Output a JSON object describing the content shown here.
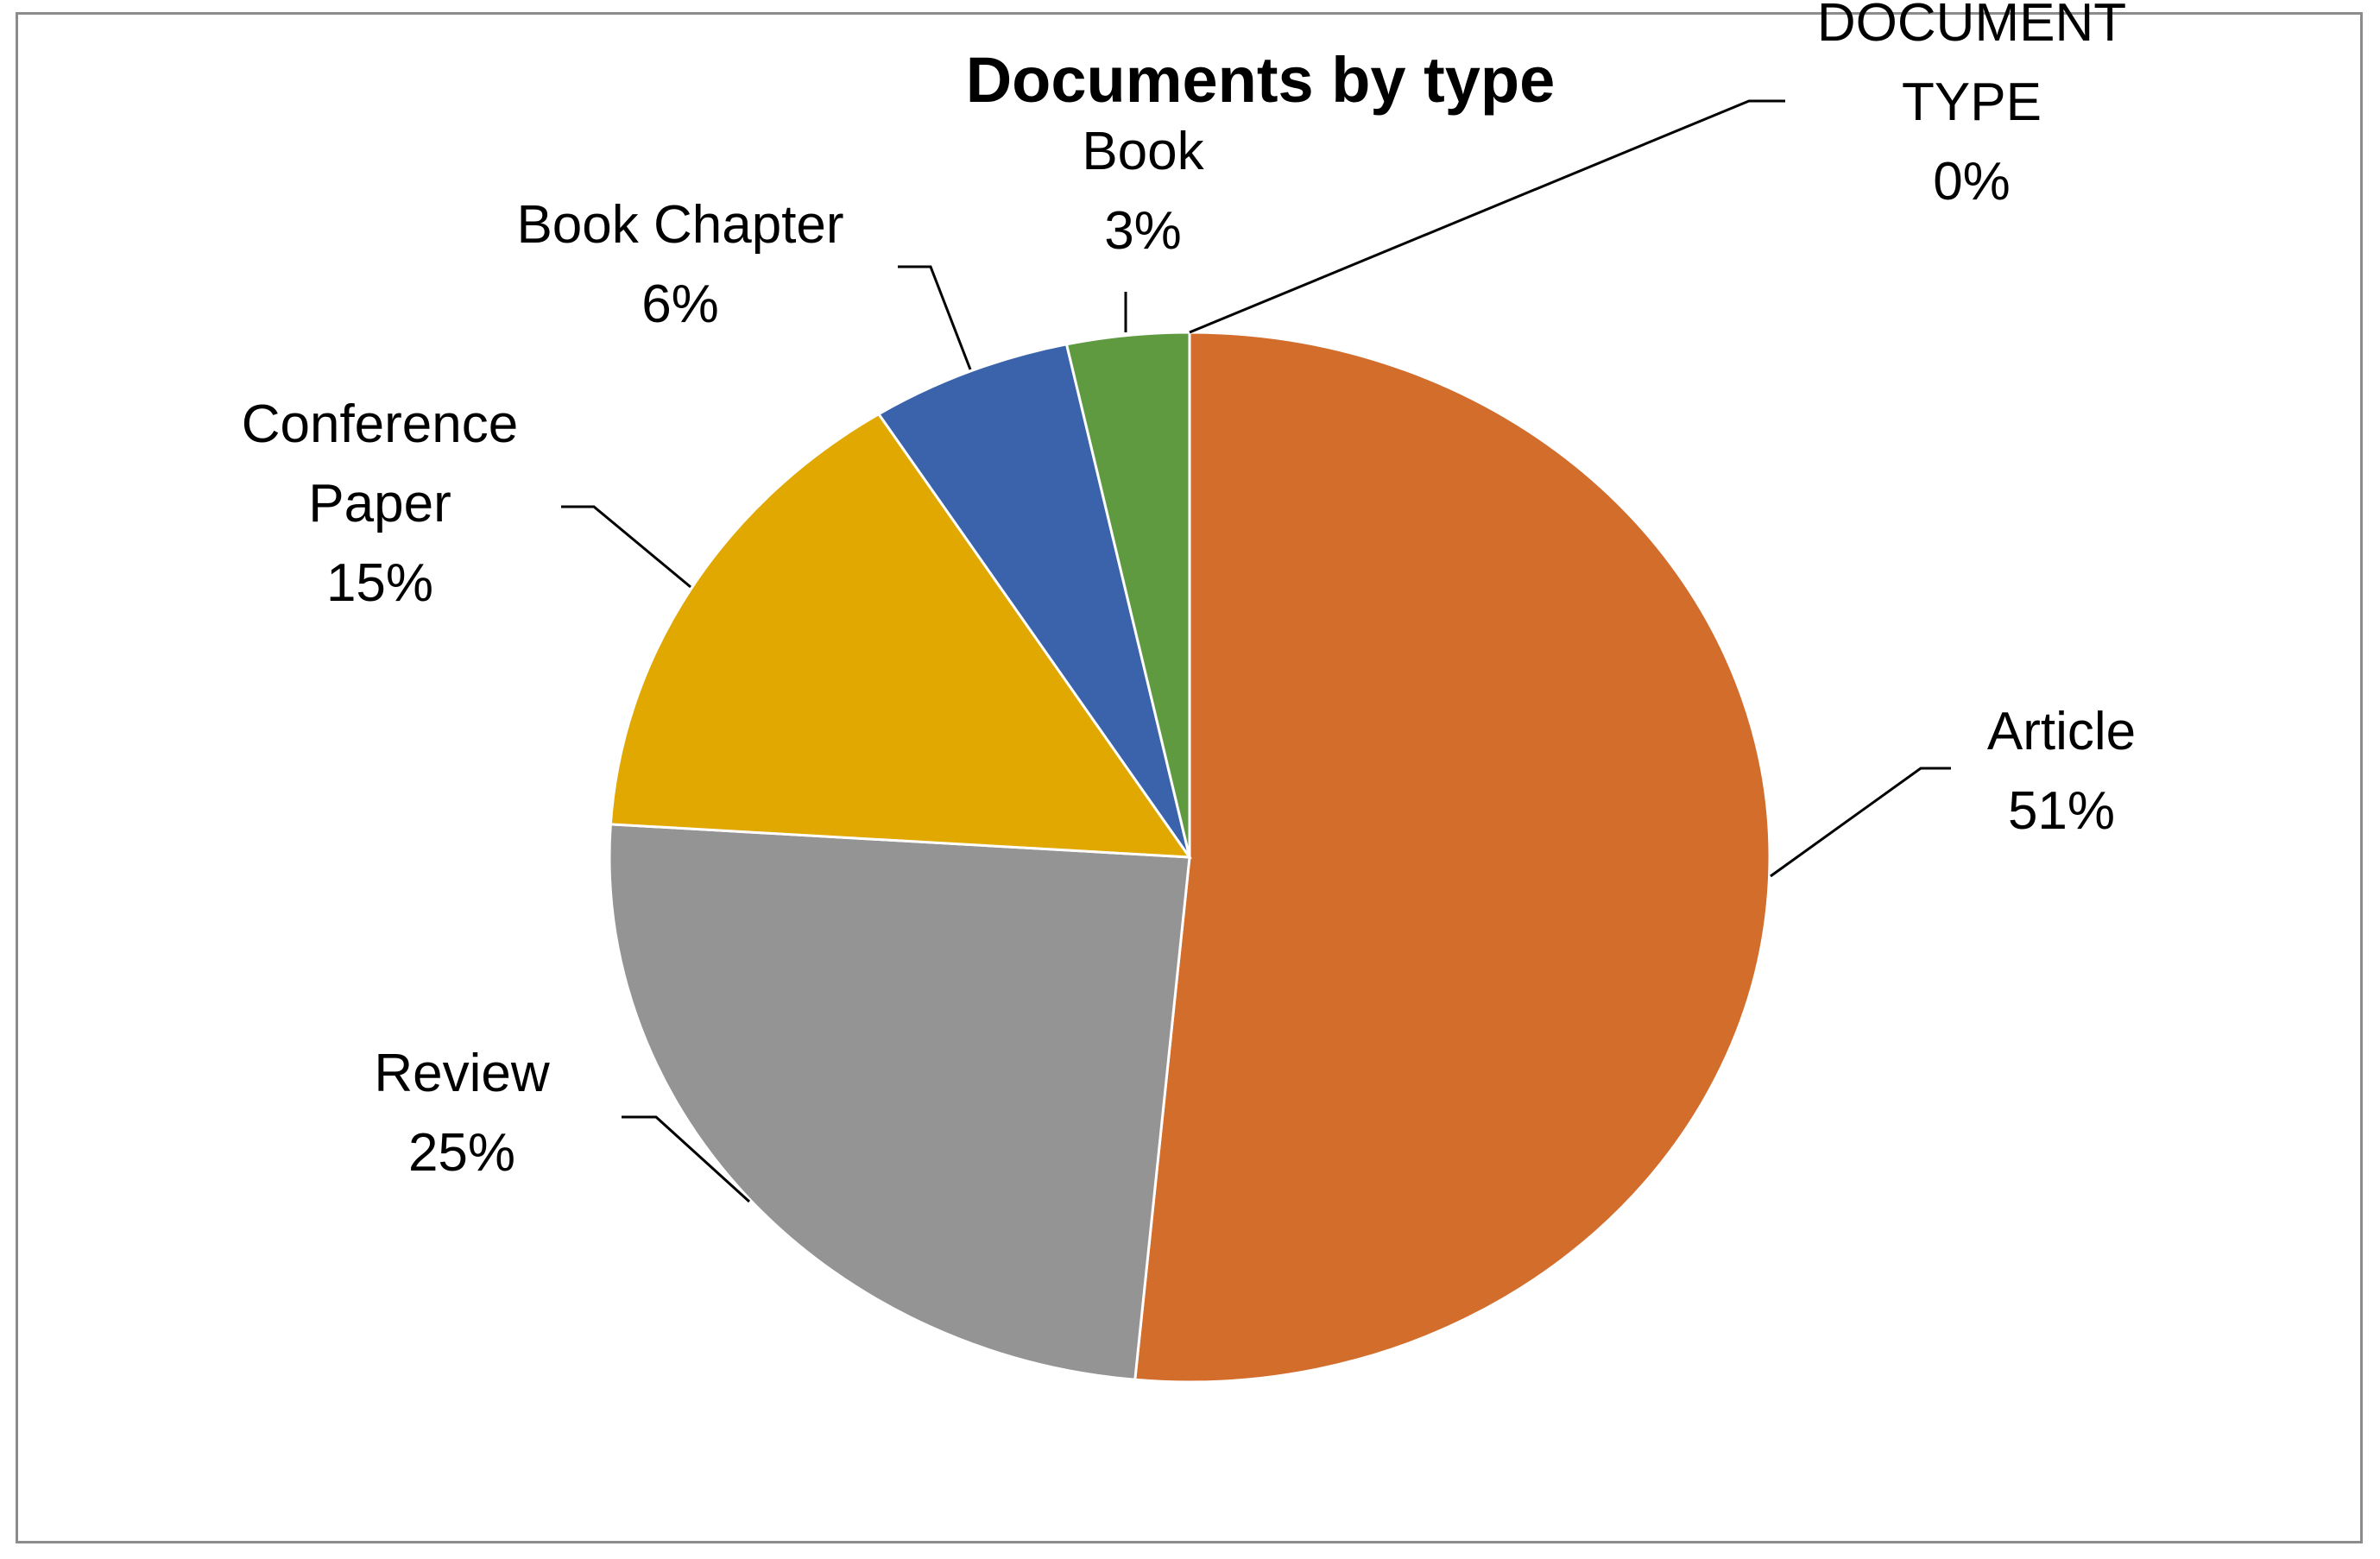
{
  "chart_data": {
    "type": "pie",
    "title": "Documents by type",
    "slices": [
      {
        "label": "Article",
        "name_lines": [
          "Article"
        ],
        "percent_label": "51%",
        "value": 51.5,
        "color": "#d36d2c"
      },
      {
        "label": "Review",
        "name_lines": [
          "Review"
        ],
        "percent_label": "25%",
        "value": 24.5,
        "color": "#949494"
      },
      {
        "label": "Conference Paper",
        "name_lines": [
          "Conference",
          "Paper"
        ],
        "percent_label": "15%",
        "value": 15.0,
        "color": "#e0a800"
      },
      {
        "label": "Book Chapter",
        "name_lines": [
          "Book Chapter"
        ],
        "percent_label": "6%",
        "value": 5.6,
        "color": "#3a63ab"
      },
      {
        "label": "Book",
        "name_lines": [
          "Book"
        ],
        "percent_label": "3%",
        "value": 3.4,
        "color": "#609a40"
      },
      {
        "label": "DOCUMENT TYPE",
        "name_lines": [
          "DOCUMENT",
          "TYPE"
        ],
        "percent_label": "0%",
        "value": 0.0,
        "color": "#4f81bd"
      }
    ],
    "start_angle": "12 o'clock",
    "direction": "clockwise",
    "legend": "none",
    "data_labels": "outside with leader lines"
  }
}
